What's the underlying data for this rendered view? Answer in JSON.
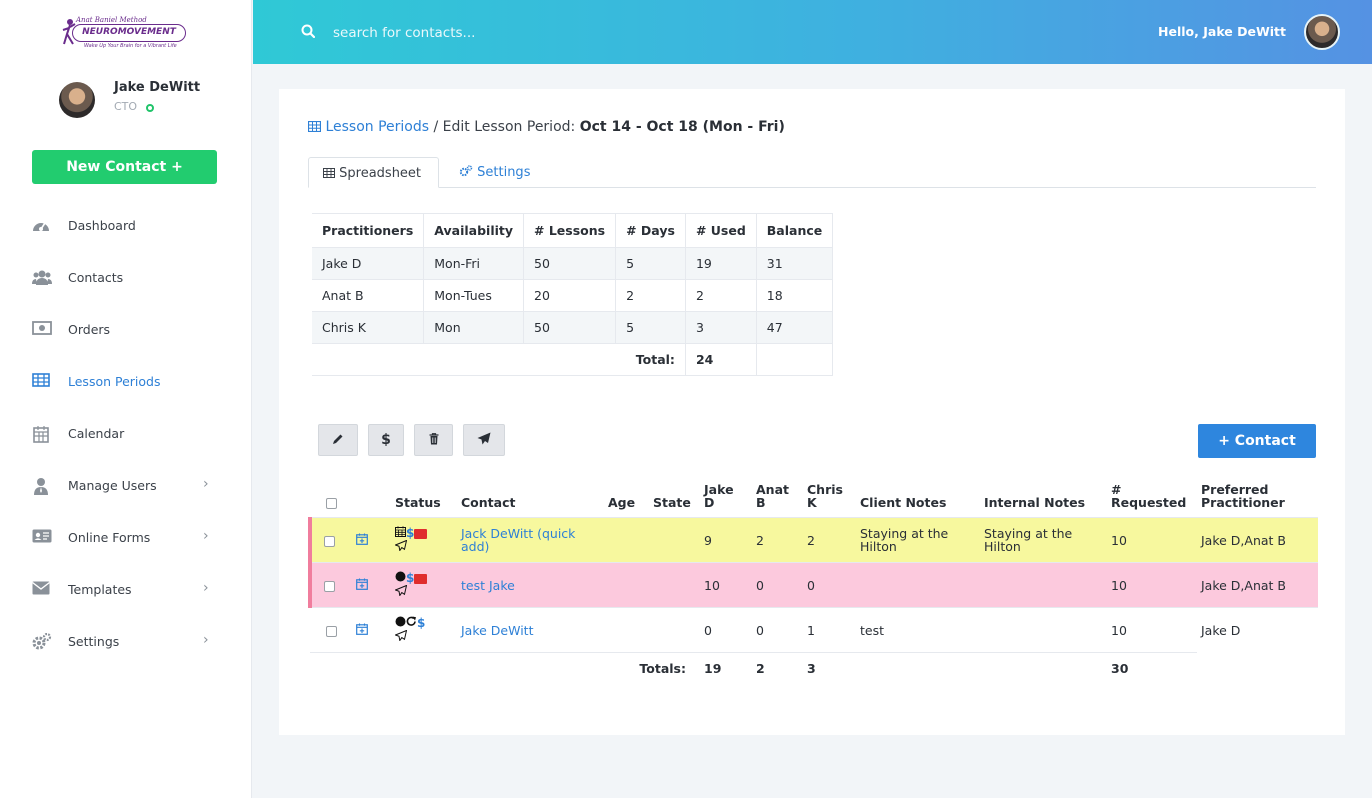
{
  "logo": {
    "script": "Anat Baniel Method",
    "main": "NEUROMOVEMENT",
    "sub": "Wake Up Your Brain for a Vibrant Life"
  },
  "profile": {
    "name": "Jake DeWitt",
    "role": "CTO"
  },
  "sidebar": {
    "new_contact": "New Contact +",
    "items": [
      {
        "label": "Dashboard",
        "icon": "dashboard-icon",
        "glyph": "◔"
      },
      {
        "label": "Contacts",
        "icon": "users-icon",
        "glyph": "👥"
      },
      {
        "label": "Orders",
        "icon": "money-icon",
        "glyph": "▭"
      },
      {
        "label": "Lesson Periods",
        "icon": "table-icon",
        "glyph": "▦"
      },
      {
        "label": "Calendar",
        "icon": "calendar-icon",
        "glyph": "▦"
      },
      {
        "label": "Manage Users",
        "icon": "user-tie-icon",
        "glyph": "👤"
      },
      {
        "label": "Online Forms",
        "icon": "id-card-icon",
        "glyph": "▤"
      },
      {
        "label": "Templates",
        "icon": "envelope-icon",
        "glyph": "✉"
      },
      {
        "label": "Settings",
        "icon": "cogs-icon",
        "glyph": "⚙"
      }
    ]
  },
  "header": {
    "search_placeholder": "search for contacts...",
    "greeting": "Hello, Jake DeWitt"
  },
  "breadcrumb": {
    "link": "Lesson Periods",
    "separator": " / Edit Lesson Period: ",
    "current": "Oct 14 - Oct 18 (Mon - Fri)"
  },
  "tabs": {
    "spreadsheet": "Spreadsheet",
    "settings": "Settings"
  },
  "summary": {
    "headers": [
      "Practitioners",
      "Availability",
      "# Lessons",
      "# Days",
      "# Used",
      "Balance"
    ],
    "rows": [
      [
        "Jake D",
        "Mon-Fri",
        "50",
        "5",
        "19",
        "31"
      ],
      [
        "Anat B",
        "Mon-Tues",
        "20",
        "2",
        "2",
        "18"
      ],
      [
        "Chris K",
        "Mon",
        "50",
        "5",
        "3",
        "47"
      ]
    ],
    "total_label": "Total:",
    "total_value": "24"
  },
  "toolbar": {
    "edit": "✎",
    "payment": "$",
    "delete": "🗑",
    "send": "➤",
    "add_contact": "+ Contact"
  },
  "roster": {
    "headers": {
      "status": "Status",
      "contact": "Contact",
      "age": "Age",
      "state": "State",
      "jake_1": "Jake",
      "jake_2": "D",
      "anat_1": "Anat",
      "anat_2": "B",
      "chris_1": "Chris",
      "chris_2": "K",
      "client_notes": "Client Notes",
      "internal_notes": "Internal Notes",
      "requested_1": "#",
      "requested_2": "Requested",
      "preferred_1": "Preferred",
      "preferred_2": "Practitioner"
    },
    "rows": [
      {
        "contact": "Jack DeWitt (quick add)",
        "age": "",
        "state": "",
        "jake": "9",
        "anat": "2",
        "chris": "2",
        "client_notes": "Staying at the Hilton",
        "internal_notes": "Staying at the Hilton",
        "requested": "10",
        "preferred": "Jake D,Anat B"
      },
      {
        "contact": "test Jake",
        "age": "",
        "state": "",
        "jake": "10",
        "anat": "0",
        "chris": "0",
        "client_notes": "",
        "internal_notes": "",
        "requested": "10",
        "preferred": "Jake D,Anat B"
      },
      {
        "contact": "Jake DeWitt",
        "age": "",
        "state": "",
        "jake": "0",
        "anat": "0",
        "chris": "1",
        "client_notes": "test",
        "internal_notes": "",
        "requested": "10",
        "preferred": "Jake D"
      }
    ],
    "totals": {
      "label": "Totals:",
      "jake": "19",
      "anat": "2",
      "chris": "3",
      "requested": "30"
    }
  },
  "colors": {
    "accent": "#2e80d6",
    "green": "#22cc6f",
    "row_yellow": "#f7f89e",
    "row_pink": "#fcc9dd",
    "header_start": "#2fc9d6",
    "header_end": "#5592e3"
  }
}
